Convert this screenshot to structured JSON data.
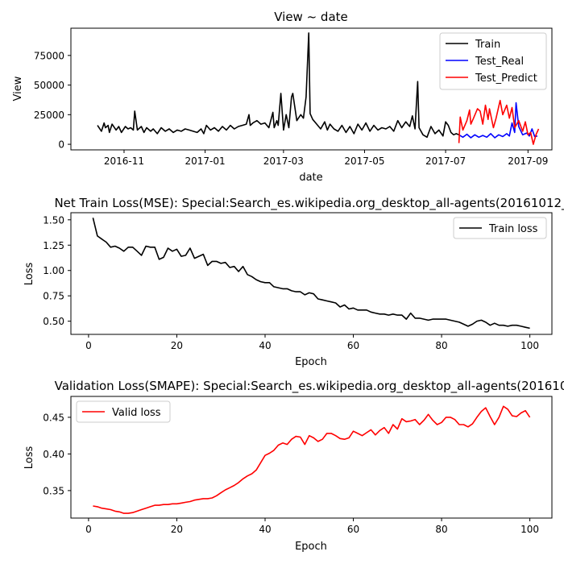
{
  "chart_data": [
    {
      "type": "line",
      "title": "View ~ date",
      "xlabel": "date",
      "ylabel": "View",
      "x_axis_kind": "date",
      "xlim": [
        "2016-09-22",
        "2017-09-19"
      ],
      "ylim": [
        -4700,
        98000
      ],
      "xticks": [
        "2016-11-01",
        "2017-01-01",
        "2017-03-01",
        "2017-05-01",
        "2017-07-01",
        "2017-09-01"
      ],
      "xtick_labels": [
        "2016-11",
        "2017-01",
        "2017-03",
        "2017-05",
        "2017-07",
        "2017-09"
      ],
      "yticks": [
        0,
        25000,
        50000,
        75000
      ],
      "ytick_labels": [
        "0",
        "25000",
        "50000",
        "75000"
      ],
      "grid": false,
      "legend": "top-right",
      "series": [
        {
          "name": "Train",
          "color": "#000000",
          "x": [
            "2016-10-12",
            "2016-10-15",
            "2016-10-17",
            "2016-10-18",
            "2016-10-20",
            "2016-10-21",
            "2016-10-23",
            "2016-10-26",
            "2016-10-28",
            "2016-10-30",
            "2016-11-02",
            "2016-11-04",
            "2016-11-06",
            "2016-11-08",
            "2016-11-09",
            "2016-11-11",
            "2016-11-14",
            "2016-11-16",
            "2016-11-18",
            "2016-11-21",
            "2016-11-23",
            "2016-11-26",
            "2016-11-29",
            "2016-12-02",
            "2016-12-05",
            "2016-12-08",
            "2016-12-11",
            "2016-12-14",
            "2016-12-17",
            "2016-12-20",
            "2016-12-23",
            "2016-12-26",
            "2016-12-29",
            "2016-12-31",
            "2017-01-02",
            "2017-01-05",
            "2017-01-08",
            "2017-01-11",
            "2017-01-14",
            "2017-01-17",
            "2017-01-20",
            "2017-01-23",
            "2017-01-26",
            "2017-01-29",
            "2017-02-01",
            "2017-02-03",
            "2017-02-04",
            "2017-02-06",
            "2017-02-09",
            "2017-02-12",
            "2017-02-15",
            "2017-02-18",
            "2017-02-21",
            "2017-02-22",
            "2017-02-24",
            "2017-02-25",
            "2017-02-27",
            "2017-03-01",
            "2017-03-03",
            "2017-03-05",
            "2017-03-07",
            "2017-03-08",
            "2017-03-11",
            "2017-03-14",
            "2017-03-16",
            "2017-03-18",
            "2017-03-20",
            "2017-03-21",
            "2017-03-23",
            "2017-03-26",
            "2017-03-29",
            "2017-04-01",
            "2017-04-03",
            "2017-04-05",
            "2017-04-08",
            "2017-04-11",
            "2017-04-14",
            "2017-04-17",
            "2017-04-20",
            "2017-04-23",
            "2017-04-26",
            "2017-04-29",
            "2017-05-02",
            "2017-05-05",
            "2017-05-08",
            "2017-05-11",
            "2017-05-14",
            "2017-05-17",
            "2017-05-20",
            "2017-05-23",
            "2017-05-26",
            "2017-05-29",
            "2017-06-01",
            "2017-06-04",
            "2017-06-06",
            "2017-06-08",
            "2017-06-10",
            "2017-06-11",
            "2017-06-14",
            "2017-06-17",
            "2017-06-20",
            "2017-06-23",
            "2017-06-26",
            "2017-06-29",
            "2017-07-01",
            "2017-07-03",
            "2017-07-05",
            "2017-07-07",
            "2017-07-09",
            "2017-07-11"
          ],
          "y": [
            16000,
            11000,
            18000,
            14000,
            16000,
            10000,
            17000,
            12000,
            15000,
            10000,
            15000,
            13000,
            14000,
            12000,
            28000,
            12000,
            15000,
            10000,
            14000,
            11000,
            13000,
            9000,
            14000,
            11000,
            13000,
            10000,
            12000,
            11000,
            13000,
            12000,
            11000,
            10000,
            13000,
            9000,
            16000,
            12000,
            14000,
            11000,
            15000,
            12000,
            16000,
            13000,
            15000,
            16000,
            17000,
            25000,
            16000,
            18000,
            20000,
            17000,
            18000,
            14000,
            27000,
            14000,
            20000,
            16000,
            43000,
            12000,
            25000,
            14000,
            40000,
            43000,
            20000,
            25000,
            22000,
            40000,
            94000,
            26000,
            21000,
            17000,
            13000,
            19000,
            12000,
            17000,
            13000,
            11000,
            16000,
            10000,
            15000,
            9000,
            17000,
            12000,
            18000,
            11000,
            16000,
            12000,
            14000,
            13000,
            15000,
            11000,
            20000,
            14000,
            19000,
            15000,
            24000,
            13000,
            53000,
            14000,
            8000,
            6000,
            15000,
            9000,
            12000,
            7000,
            19000,
            16000,
            10000,
            8000,
            9000,
            8000
          ]
        },
        {
          "name": "Test_Real",
          "color": "#0000ff",
          "x": [
            "2017-07-11",
            "2017-07-14",
            "2017-07-17",
            "2017-07-20",
            "2017-07-23",
            "2017-07-26",
            "2017-07-29",
            "2017-08-01",
            "2017-08-04",
            "2017-08-07",
            "2017-08-10",
            "2017-08-13",
            "2017-08-16",
            "2017-08-18",
            "2017-08-20",
            "2017-08-22",
            "2017-08-23",
            "2017-08-25",
            "2017-08-28",
            "2017-08-31",
            "2017-09-02",
            "2017-09-04",
            "2017-09-06",
            "2017-09-08"
          ],
          "y": [
            8000,
            6000,
            8500,
            5500,
            8000,
            6000,
            7500,
            6000,
            9000,
            5500,
            8000,
            6500,
            9000,
            7000,
            18000,
            10000,
            35000,
            15000,
            8000,
            9500,
            7000,
            13000,
            6500,
            7000
          ]
        },
        {
          "name": "Test_Predict",
          "color": "#ff0000",
          "x": [
            "2017-07-11",
            "2017-07-12",
            "2017-07-14",
            "2017-07-17",
            "2017-07-19",
            "2017-07-20",
            "2017-07-22",
            "2017-07-25",
            "2017-07-27",
            "2017-07-29",
            "2017-07-31",
            "2017-08-02",
            "2017-08-03",
            "2017-08-06",
            "2017-08-08",
            "2017-08-11",
            "2017-08-13",
            "2017-08-16",
            "2017-08-18",
            "2017-08-20",
            "2017-08-22",
            "2017-08-25",
            "2017-08-28",
            "2017-08-30",
            "2017-09-01",
            "2017-09-03",
            "2017-09-05",
            "2017-09-07",
            "2017-09-09"
          ],
          "y": [
            1000,
            23000,
            12000,
            20000,
            29000,
            17000,
            22000,
            30000,
            28000,
            17000,
            33000,
            21000,
            30000,
            14000,
            22000,
            37000,
            25000,
            33000,
            22000,
            31000,
            14000,
            20000,
            11000,
            19000,
            8000,
            10000,
            0,
            8000,
            13000
          ]
        }
      ]
    },
    {
      "type": "line",
      "title": "Net Train Loss(MSE): Special:Search_es.wikipedia.org_desktop_all-agents(20161012_",
      "xlabel": "Epoch",
      "ylabel": "Loss",
      "xlim": [
        -4,
        105
      ],
      "ylim": [
        0.37,
        1.57
      ],
      "xticks": [
        0,
        20,
        40,
        60,
        80,
        100
      ],
      "yticks": [
        0.5,
        0.75,
        1.0,
        1.25,
        1.5
      ],
      "ytick_labels": [
        "0.50",
        "0.75",
        "1.00",
        "1.25",
        "1.50"
      ],
      "grid": false,
      "legend": "top-right",
      "series": [
        {
          "name": "Train loss",
          "color": "#000000",
          "x": [
            1,
            2,
            3,
            4,
            5,
            6,
            7,
            8,
            9,
            10,
            11,
            12,
            13,
            14,
            15,
            16,
            17,
            18,
            19,
            20,
            21,
            22,
            23,
            24,
            25,
            26,
            27,
            28,
            29,
            30,
            31,
            32,
            33,
            34,
            35,
            36,
            37,
            38,
            39,
            40,
            41,
            42,
            43,
            44,
            45,
            46,
            47,
            48,
            49,
            50,
            51,
            52,
            53,
            54,
            55,
            56,
            57,
            58,
            59,
            60,
            61,
            62,
            63,
            64,
            65,
            66,
            67,
            68,
            69,
            70,
            71,
            72,
            73,
            74,
            75,
            76,
            77,
            78,
            79,
            80,
            81,
            82,
            83,
            84,
            85,
            86,
            87,
            88,
            89,
            90,
            91,
            92,
            93,
            94,
            95,
            96,
            97,
            98,
            99,
            100
          ],
          "y": [
            1.52,
            1.34,
            1.31,
            1.28,
            1.23,
            1.24,
            1.22,
            1.19,
            1.23,
            1.23,
            1.19,
            1.15,
            1.24,
            1.23,
            1.23,
            1.11,
            1.13,
            1.22,
            1.19,
            1.21,
            1.14,
            1.15,
            1.22,
            1.12,
            1.14,
            1.16,
            1.05,
            1.09,
            1.09,
            1.07,
            1.08,
            1.03,
            1.04,
            0.99,
            1.04,
            0.96,
            0.94,
            0.91,
            0.89,
            0.88,
            0.88,
            0.84,
            0.83,
            0.82,
            0.82,
            0.8,
            0.79,
            0.79,
            0.76,
            0.78,
            0.77,
            0.72,
            0.71,
            0.7,
            0.69,
            0.68,
            0.64,
            0.66,
            0.62,
            0.63,
            0.61,
            0.61,
            0.61,
            0.59,
            0.58,
            0.57,
            0.57,
            0.56,
            0.57,
            0.56,
            0.56,
            0.52,
            0.58,
            0.53,
            0.53,
            0.52,
            0.51,
            0.52,
            0.52,
            0.52,
            0.52,
            0.51,
            0.5,
            0.49,
            0.47,
            0.45,
            0.47,
            0.5,
            0.51,
            0.49,
            0.46,
            0.48,
            0.46,
            0.46,
            0.45,
            0.46,
            0.46,
            0.45,
            0.44,
            0.43
          ]
        }
      ]
    },
    {
      "type": "line",
      "title": "Validation Loss(SMAPE): Special:Search_es.wikipedia.org_desktop_all-agents(201610",
      "xlabel": "Epoch",
      "ylabel": "Loss",
      "xlim": [
        -4,
        105
      ],
      "ylim": [
        0.3125,
        0.4785
      ],
      "xticks": [
        0,
        20,
        40,
        60,
        80,
        100
      ],
      "yticks": [
        0.35,
        0.4,
        0.45
      ],
      "ytick_labels": [
        "0.35",
        "0.40",
        "0.45"
      ],
      "grid": false,
      "legend": "top-left",
      "series": [
        {
          "name": "Valid loss",
          "color": "#ff0000",
          "x": [
            1,
            2,
            3,
            4,
            5,
            6,
            7,
            8,
            9,
            10,
            11,
            12,
            13,
            14,
            15,
            16,
            17,
            18,
            19,
            20,
            21,
            22,
            23,
            24,
            25,
            26,
            27,
            28,
            29,
            30,
            31,
            32,
            33,
            34,
            35,
            36,
            37,
            38,
            39,
            40,
            41,
            42,
            43,
            44,
            45,
            46,
            47,
            48,
            49,
            50,
            51,
            52,
            53,
            54,
            55,
            56,
            57,
            58,
            59,
            60,
            61,
            62,
            63,
            64,
            65,
            66,
            67,
            68,
            69,
            70,
            71,
            72,
            73,
            74,
            75,
            76,
            77,
            78,
            79,
            80,
            81,
            82,
            83,
            84,
            85,
            86,
            87,
            88,
            89,
            90,
            91,
            92,
            93,
            94,
            95,
            96,
            97,
            98,
            99,
            100
          ],
          "y": [
            0.329,
            0.328,
            0.326,
            0.325,
            0.324,
            0.322,
            0.321,
            0.319,
            0.319,
            0.32,
            0.322,
            0.324,
            0.326,
            0.328,
            0.33,
            0.33,
            0.331,
            0.331,
            0.332,
            0.332,
            0.333,
            0.334,
            0.335,
            0.337,
            0.338,
            0.339,
            0.339,
            0.34,
            0.343,
            0.347,
            0.351,
            0.354,
            0.357,
            0.361,
            0.366,
            0.37,
            0.373,
            0.378,
            0.388,
            0.398,
            0.401,
            0.405,
            0.412,
            0.415,
            0.413,
            0.42,
            0.424,
            0.423,
            0.413,
            0.425,
            0.422,
            0.417,
            0.42,
            0.428,
            0.428,
            0.425,
            0.421,
            0.42,
            0.422,
            0.431,
            0.428,
            0.425,
            0.429,
            0.433,
            0.426,
            0.432,
            0.436,
            0.428,
            0.44,
            0.434,
            0.448,
            0.444,
            0.445,
            0.447,
            0.44,
            0.446,
            0.454,
            0.446,
            0.44,
            0.443,
            0.45,
            0.45,
            0.447,
            0.44,
            0.44,
            0.437,
            0.441,
            0.45,
            0.458,
            0.463,
            0.451,
            0.44,
            0.45,
            0.465,
            0.461,
            0.452,
            0.451,
            0.456,
            0.459,
            0.45
          ]
        }
      ]
    }
  ]
}
